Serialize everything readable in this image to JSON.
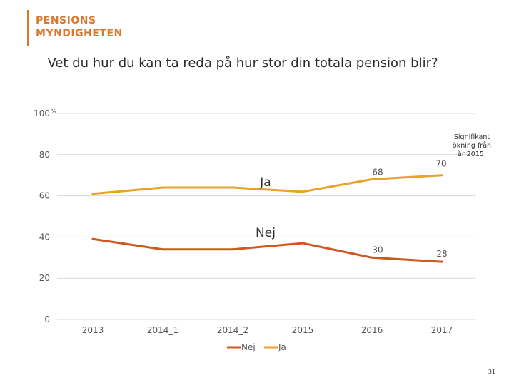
{
  "logo": {
    "line1": "PENSIONS",
    "line2": "MYNDIGHETEN"
  },
  "title": "Vet du hur du kan ta reda på hur stor din totala pension blir?",
  "page_number": "31",
  "annotation": [
    "Signifikant",
    "ökning från",
    "år 2015."
  ],
  "colors": {
    "nej": "#d0581f",
    "ja": "#e8a22c",
    "grid": "#d9d9d9",
    "logo": "#d9782f"
  },
  "chart_data": {
    "type": "line",
    "categories": [
      "2013",
      "2014_1",
      "2014_2",
      "2015",
      "2016",
      "2017"
    ],
    "series": [
      {
        "name": "Nej",
        "values": [
          39,
          34,
          34,
          37,
          30,
          28
        ],
        "labels": [
          "",
          "",
          "",
          "",
          "30",
          "28"
        ],
        "inline_label": "Nej"
      },
      {
        "name": "Ja",
        "values": [
          61,
          64,
          64,
          62,
          68,
          70
        ],
        "labels": [
          "",
          "",
          "",
          "",
          "68",
          "70"
        ],
        "inline_label": "Ja"
      }
    ],
    "y_ticks": [
      "0",
      "20",
      "40",
      "60",
      "80",
      "100"
    ],
    "y_tick_values": [
      0,
      20,
      40,
      60,
      80,
      100
    ],
    "y_unit": "%",
    "ylim": [
      0,
      100
    ],
    "grid": true,
    "legend": [
      "Nej",
      "Ja"
    ],
    "legend_position": "bottom"
  }
}
